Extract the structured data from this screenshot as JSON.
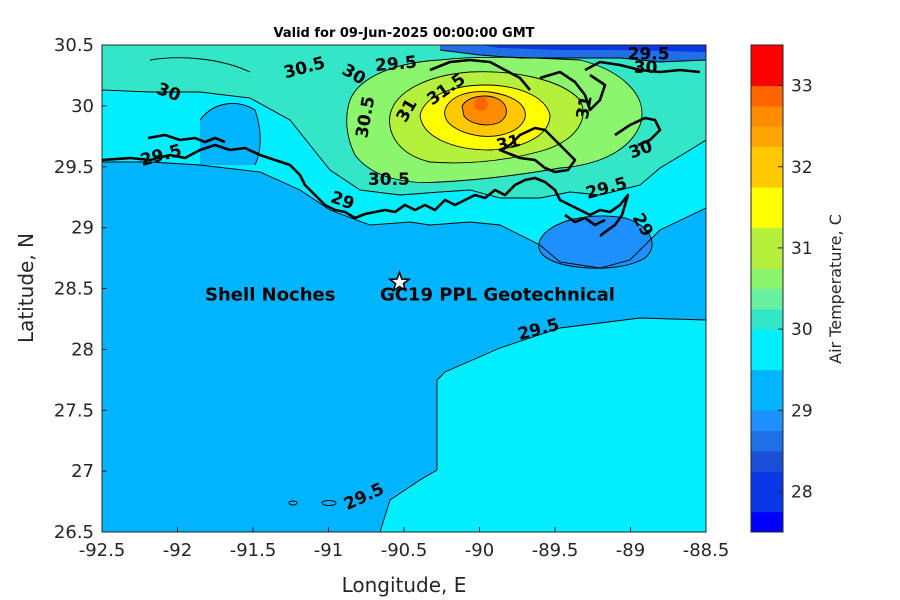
{
  "title": "Valid for 09-Jun-2025 00:00:00 GMT",
  "x_axis": {
    "label": "Longitude, E",
    "range": [
      -92.5,
      -88.5
    ],
    "ticks": [
      "-92.5",
      "-92",
      "-91.5",
      "-91",
      "-90.5",
      "-90",
      "-89.5",
      "-89",
      "-88.5"
    ]
  },
  "y_axis": {
    "label": "Latitude, N",
    "range": [
      26.5,
      30.5
    ],
    "ticks": [
      "26.5",
      "27",
      "27.5",
      "28",
      "28.5",
      "29",
      "29.5",
      "30",
      "30.5"
    ]
  },
  "colorbar": {
    "label": "Air Temperature, C",
    "range": [
      27.5,
      33.5
    ],
    "ticks": [
      "28",
      "29",
      "30",
      "31",
      "32",
      "33"
    ],
    "levels": [
      {
        "from": 27.5,
        "to": 27.75,
        "color": "#0000ff"
      },
      {
        "from": 27.75,
        "to": 28.25,
        "color": "#0a37e6"
      },
      {
        "from": 28.25,
        "to": 28.5,
        "color": "#1a4fd8"
      },
      {
        "from": 28.5,
        "to": 28.75,
        "color": "#1f6fe6"
      },
      {
        "from": 28.75,
        "to": 29.0,
        "color": "#1e90ff"
      },
      {
        "from": 29.0,
        "to": 29.5,
        "color": "#00b4ff"
      },
      {
        "from": 29.5,
        "to": 30.0,
        "color": "#00eeff"
      },
      {
        "from": 30.0,
        "to": 30.25,
        "color": "#33e6c8"
      },
      {
        "from": 30.25,
        "to": 30.5,
        "color": "#66f0a0"
      },
      {
        "from": 30.5,
        "to": 30.75,
        "color": "#8cf56e"
      },
      {
        "from": 30.75,
        "to": 31.25,
        "color": "#b4f03c"
      },
      {
        "from": 31.25,
        "to": 31.75,
        "color": "#ffff00"
      },
      {
        "from": 31.75,
        "to": 32.25,
        "color": "#ffc800"
      },
      {
        "from": 32.25,
        "to": 32.5,
        "color": "#ffa500"
      },
      {
        "from": 32.5,
        "to": 32.75,
        "color": "#ff8c00"
      },
      {
        "from": 32.75,
        "to": 33.0,
        "color": "#ff6400"
      },
      {
        "from": 33.0,
        "to": 33.5,
        "color": "#ff0000"
      }
    ]
  },
  "site_marker": {
    "label_left": "Shell Noches",
    "label_right": "GC19 PPL  Geotechnical",
    "lon": -90.53,
    "lat": 28.55,
    "icon": "star-icon"
  },
  "contour_labels": [
    {
      "text": "30.5",
      "lon": -91.15,
      "lat": 30.27,
      "rot": -15
    },
    {
      "text": "30",
      "lon": -92.07,
      "lat": 30.07,
      "rot": 20
    },
    {
      "text": "30",
      "lon": -90.85,
      "lat": 30.22,
      "rot": 30
    },
    {
      "text": "29.5",
      "lon": -90.55,
      "lat": 30.3,
      "rot": -5
    },
    {
      "text": "30.5",
      "lon": -90.72,
      "lat": 29.9,
      "rot": -80
    },
    {
      "text": "31",
      "lon": -90.45,
      "lat": 29.94,
      "rot": -60
    },
    {
      "text": "31.5",
      "lon": -90.2,
      "lat": 30.1,
      "rot": -35
    },
    {
      "text": "31",
      "lon": -89.8,
      "lat": 29.65,
      "rot": -15
    },
    {
      "text": "31",
      "lon": -89.27,
      "lat": 29.98,
      "rot": -80
    },
    {
      "text": "30",
      "lon": -88.92,
      "lat": 29.6,
      "rot": -20
    },
    {
      "text": "29.5",
      "lon": -92.1,
      "lat": 29.55,
      "rot": -15
    },
    {
      "text": "30.5",
      "lon": -90.6,
      "lat": 29.35,
      "rot": 0
    },
    {
      "text": "29",
      "lon": -90.92,
      "lat": 29.18,
      "rot": 20
    },
    {
      "text": "29.5",
      "lon": -89.15,
      "lat": 29.28,
      "rot": -15
    },
    {
      "text": "29",
      "lon": -88.95,
      "lat": 29.0,
      "rot": 60
    },
    {
      "text": "29.5",
      "lon": -89.6,
      "lat": 28.12,
      "rot": -15
    },
    {
      "text": "29.5",
      "lon": -90.75,
      "lat": 26.75,
      "rot": -25
    },
    {
      "text": "29.5",
      "lon": -88.88,
      "lat": 30.38,
      "rot": 0
    },
    {
      "text": "30",
      "lon": -88.9,
      "lat": 30.27,
      "rot": 0
    }
  ]
}
